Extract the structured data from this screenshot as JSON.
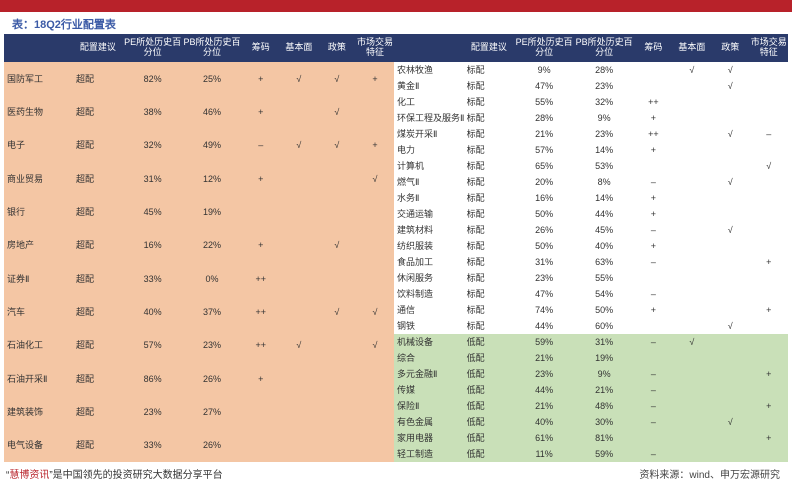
{
  "title": "表：18Q2行业配置表",
  "headers": [
    "",
    "配置建议",
    "PE所处历史百分位",
    "PB所处历史百分位",
    "筹码",
    "基本面",
    "政策",
    "市场交易特征"
  ],
  "colors": {
    "over": "#f4c6a4",
    "neutral": "#ffffff",
    "under": "#c9e0b8",
    "headerbg": "#2a3a6a"
  },
  "left": [
    {
      "n": "国防军工",
      "r": "超配",
      "pe": "82%",
      "pb": "25%",
      "ch": "+",
      "fd": "√",
      "pl": "√",
      "mk": "+",
      "bg": "over"
    },
    {
      "n": "医药生物",
      "r": "超配",
      "pe": "38%",
      "pb": "46%",
      "ch": "+",
      "fd": "",
      "pl": "√",
      "mk": "",
      "bg": "over"
    },
    {
      "n": "电子",
      "r": "超配",
      "pe": "32%",
      "pb": "49%",
      "ch": "–",
      "fd": "√",
      "pl": "√",
      "mk": "+",
      "bg": "over"
    },
    {
      "n": "商业贸易",
      "r": "超配",
      "pe": "31%",
      "pb": "12%",
      "ch": "+",
      "fd": "",
      "pl": "",
      "mk": "√",
      "bg": "over"
    },
    {
      "n": "银行",
      "r": "超配",
      "pe": "45%",
      "pb": "19%",
      "ch": "",
      "fd": "",
      "pl": "",
      "mk": "",
      "bg": "over"
    },
    {
      "n": "房地产",
      "r": "超配",
      "pe": "16%",
      "pb": "22%",
      "ch": "+",
      "fd": "",
      "pl": "√",
      "mk": "",
      "bg": "over"
    },
    {
      "n": "证券Ⅱ",
      "r": "超配",
      "pe": "33%",
      "pb": "0%",
      "ch": "++",
      "fd": "",
      "pl": "",
      "mk": "",
      "bg": "over"
    },
    {
      "n": "汽车",
      "r": "超配",
      "pe": "40%",
      "pb": "37%",
      "ch": "++",
      "fd": "",
      "pl": "√",
      "mk": "√",
      "bg": "over"
    },
    {
      "n": "石油化工",
      "r": "超配",
      "pe": "57%",
      "pb": "23%",
      "ch": "++",
      "fd": "√",
      "pl": "",
      "mk": "√",
      "bg": "over"
    },
    {
      "n": "石油开采Ⅱ",
      "r": "超配",
      "pe": "86%",
      "pb": "26%",
      "ch": "+",
      "fd": "",
      "pl": "",
      "mk": "",
      "bg": "over"
    },
    {
      "n": "建筑装饰",
      "r": "超配",
      "pe": "23%",
      "pb": "27%",
      "ch": "",
      "fd": "",
      "pl": "",
      "mk": "",
      "bg": "over"
    },
    {
      "n": "电气设备",
      "r": "超配",
      "pe": "33%",
      "pb": "26%",
      "ch": "",
      "fd": "",
      "pl": "",
      "mk": "",
      "bg": "over"
    }
  ],
  "right": [
    {
      "n": "农林牧渔",
      "r": "标配",
      "pe": "9%",
      "pb": "28%",
      "ch": "",
      "fd": "√",
      "pl": "√",
      "mk": "",
      "bg": "neutral"
    },
    {
      "n": "黄金Ⅱ",
      "r": "标配",
      "pe": "47%",
      "pb": "23%",
      "ch": "",
      "fd": "",
      "pl": "√",
      "mk": "",
      "bg": "neutral"
    },
    {
      "n": "化工",
      "r": "标配",
      "pe": "55%",
      "pb": "32%",
      "ch": "++",
      "fd": "",
      "pl": "",
      "mk": "",
      "bg": "neutral"
    },
    {
      "n": "环保工程及服务Ⅱ",
      "r": "标配",
      "pe": "28%",
      "pb": "9%",
      "ch": "+",
      "fd": "",
      "pl": "",
      "mk": "",
      "bg": "neutral"
    },
    {
      "n": "煤炭开采Ⅱ",
      "r": "标配",
      "pe": "21%",
      "pb": "23%",
      "ch": "++",
      "fd": "",
      "pl": "√",
      "mk": "–",
      "bg": "neutral"
    },
    {
      "n": "电力",
      "r": "标配",
      "pe": "57%",
      "pb": "14%",
      "ch": "+",
      "fd": "",
      "pl": "",
      "mk": "",
      "bg": "neutral"
    },
    {
      "n": "计算机",
      "r": "标配",
      "pe": "65%",
      "pb": "53%",
      "ch": "",
      "fd": "",
      "pl": "",
      "mk": "√",
      "bg": "neutral"
    },
    {
      "n": "燃气Ⅱ",
      "r": "标配",
      "pe": "20%",
      "pb": "8%",
      "ch": "–",
      "fd": "",
      "pl": "√",
      "mk": "",
      "bg": "neutral"
    },
    {
      "n": "水务Ⅱ",
      "r": "标配",
      "pe": "16%",
      "pb": "14%",
      "ch": "+",
      "fd": "",
      "pl": "",
      "mk": "",
      "bg": "neutral"
    },
    {
      "n": "交通运输",
      "r": "标配",
      "pe": "50%",
      "pb": "44%",
      "ch": "+",
      "fd": "",
      "pl": "",
      "mk": "",
      "bg": "neutral"
    },
    {
      "n": "建筑材料",
      "r": "标配",
      "pe": "26%",
      "pb": "45%",
      "ch": "–",
      "fd": "",
      "pl": "√",
      "mk": "",
      "bg": "neutral"
    },
    {
      "n": "纺织服装",
      "r": "标配",
      "pe": "50%",
      "pb": "40%",
      "ch": "+",
      "fd": "",
      "pl": "",
      "mk": "",
      "bg": "neutral"
    },
    {
      "n": "食品加工",
      "r": "标配",
      "pe": "31%",
      "pb": "63%",
      "ch": "–",
      "fd": "",
      "pl": "",
      "mk": "+",
      "bg": "neutral"
    },
    {
      "n": "休闲服务",
      "r": "标配",
      "pe": "23%",
      "pb": "55%",
      "ch": "",
      "fd": "",
      "pl": "",
      "mk": "",
      "bg": "neutral"
    },
    {
      "n": "饮料制造",
      "r": "标配",
      "pe": "47%",
      "pb": "54%",
      "ch": "–",
      "fd": "",
      "pl": "",
      "mk": "",
      "bg": "neutral"
    },
    {
      "n": "通信",
      "r": "标配",
      "pe": "74%",
      "pb": "50%",
      "ch": "+",
      "fd": "",
      "pl": "",
      "mk": "+",
      "bg": "neutral"
    },
    {
      "n": "钢铁",
      "r": "标配",
      "pe": "44%",
      "pb": "60%",
      "ch": "",
      "fd": "",
      "pl": "√",
      "mk": "",
      "bg": "neutral"
    },
    {
      "n": "机械设备",
      "r": "低配",
      "pe": "59%",
      "pb": "31%",
      "ch": "–",
      "fd": "√",
      "pl": "",
      "mk": "",
      "bg": "under"
    },
    {
      "n": "综合",
      "r": "低配",
      "pe": "21%",
      "pb": "19%",
      "ch": "",
      "fd": "",
      "pl": "",
      "mk": "",
      "bg": "under"
    },
    {
      "n": "多元金融Ⅱ",
      "r": "低配",
      "pe": "23%",
      "pb": "9%",
      "ch": "–",
      "fd": "",
      "pl": "",
      "mk": "+",
      "bg": "under"
    },
    {
      "n": "传媒",
      "r": "低配",
      "pe": "44%",
      "pb": "21%",
      "ch": "–",
      "fd": "",
      "pl": "",
      "mk": "",
      "bg": "under"
    },
    {
      "n": "保险Ⅱ",
      "r": "低配",
      "pe": "21%",
      "pb": "48%",
      "ch": "–",
      "fd": "",
      "pl": "",
      "mk": "+",
      "bg": "under"
    },
    {
      "n": "有色金属",
      "r": "低配",
      "pe": "40%",
      "pb": "30%",
      "ch": "–",
      "fd": "",
      "pl": "√",
      "mk": "",
      "bg": "under"
    },
    {
      "n": "家用电器",
      "r": "低配",
      "pe": "61%",
      "pb": "81%",
      "ch": "",
      "fd": "",
      "pl": "",
      "mk": "+",
      "bg": "under"
    },
    {
      "n": "轻工制造",
      "r": "低配",
      "pe": "11%",
      "pb": "59%",
      "ch": "–",
      "fd": "",
      "pl": "",
      "mk": "",
      "bg": "under"
    }
  ],
  "footer_left_pre": "“",
  "footer_brand": "慧博资讯",
  "footer_left_post": "”是中国领先的投资研究大数据分享平台",
  "footer_right": "资料来源：wind、申万宏源研究"
}
